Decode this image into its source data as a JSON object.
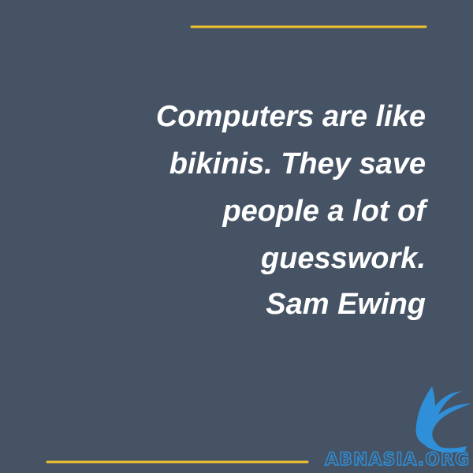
{
  "quote": {
    "lines": [
      "Computers are like",
      "bikinis. They save",
      "people a lot of",
      "guesswork."
    ],
    "author": "Sam Ewing"
  },
  "logo": {
    "text": "ABNASIA.ORG"
  }
}
